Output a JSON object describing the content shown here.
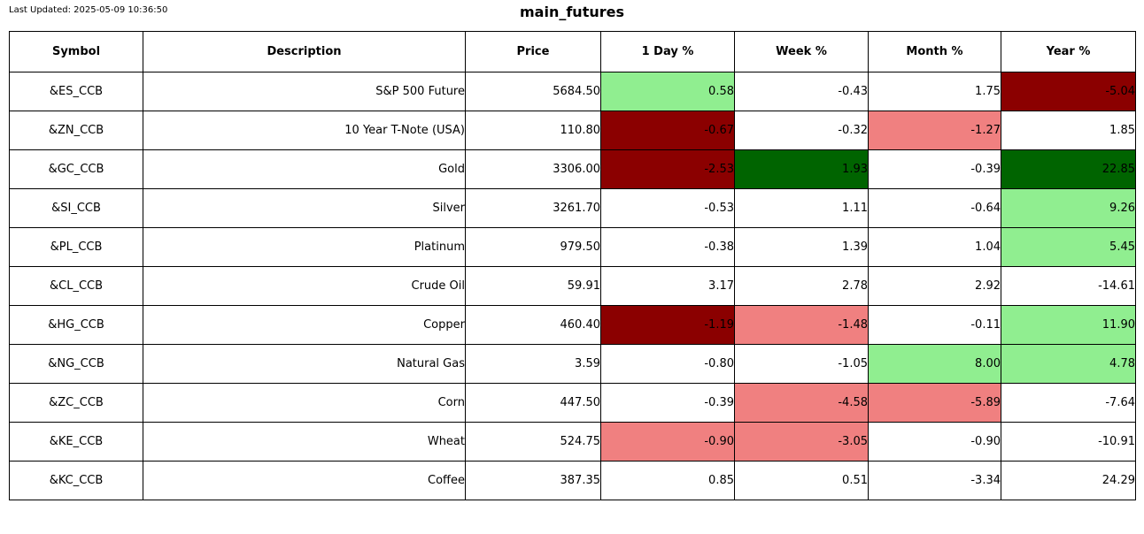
{
  "header": {
    "last_updated": "Last Updated: 2025-05-09 10:36:50",
    "title": "main_futures"
  },
  "chart_data": {
    "type": "table",
    "title": "main_futures",
    "columns": [
      "Symbol",
      "Description",
      "Price",
      "1 Day %",
      "Week %",
      "Month %",
      "Year %"
    ],
    "color_map": {
      "neutral": "#FFFFFF",
      "up": "#90EE90",
      "up_strong": "#006400",
      "down": "#F08080",
      "down_strong": "#8B0000"
    },
    "rows": [
      {
        "symbol": "&ES_CCB",
        "description": "S&P 500 Future",
        "price": "5684.50",
        "pct": [
          {
            "value": "0.58",
            "color": "up"
          },
          {
            "value": "-0.43",
            "color": "neutral"
          },
          {
            "value": "1.75",
            "color": "neutral"
          },
          {
            "value": "-5.04",
            "color": "down_strong"
          }
        ]
      },
      {
        "symbol": "&ZN_CCB",
        "description": "10 Year T-Note (USA)",
        "price": "110.80",
        "pct": [
          {
            "value": "-0.67",
            "color": "down_strong"
          },
          {
            "value": "-0.32",
            "color": "neutral"
          },
          {
            "value": "-1.27",
            "color": "down"
          },
          {
            "value": "1.85",
            "color": "neutral"
          }
        ]
      },
      {
        "symbol": "&GC_CCB",
        "description": "Gold",
        "price": "3306.00",
        "pct": [
          {
            "value": "-2.53",
            "color": "down_strong"
          },
          {
            "value": "1.93",
            "color": "up_strong"
          },
          {
            "value": "-0.39",
            "color": "neutral"
          },
          {
            "value": "22.85",
            "color": "up_strong"
          }
        ]
      },
      {
        "symbol": "&SI_CCB",
        "description": "Silver",
        "price": "3261.70",
        "pct": [
          {
            "value": "-0.53",
            "color": "neutral"
          },
          {
            "value": "1.11",
            "color": "neutral"
          },
          {
            "value": "-0.64",
            "color": "neutral"
          },
          {
            "value": "9.26",
            "color": "up"
          }
        ]
      },
      {
        "symbol": "&PL_CCB",
        "description": "Platinum",
        "price": "979.50",
        "pct": [
          {
            "value": "-0.38",
            "color": "neutral"
          },
          {
            "value": "1.39",
            "color": "neutral"
          },
          {
            "value": "1.04",
            "color": "neutral"
          },
          {
            "value": "5.45",
            "color": "up"
          }
        ]
      },
      {
        "symbol": "&CL_CCB",
        "description": "Crude Oil",
        "price": "59.91",
        "pct": [
          {
            "value": "3.17",
            "color": "neutral"
          },
          {
            "value": "2.78",
            "color": "neutral"
          },
          {
            "value": "2.92",
            "color": "neutral"
          },
          {
            "value": "-14.61",
            "color": "neutral"
          }
        ]
      },
      {
        "symbol": "&HG_CCB",
        "description": "Copper",
        "price": "460.40",
        "pct": [
          {
            "value": "-1.19",
            "color": "down_strong"
          },
          {
            "value": "-1.48",
            "color": "down"
          },
          {
            "value": "-0.11",
            "color": "neutral"
          },
          {
            "value": "11.90",
            "color": "up"
          }
        ]
      },
      {
        "symbol": "&NG_CCB",
        "description": "Natural Gas",
        "price": "3.59",
        "pct": [
          {
            "value": "-0.80",
            "color": "neutral"
          },
          {
            "value": "-1.05",
            "color": "neutral"
          },
          {
            "value": "8.00",
            "color": "up"
          },
          {
            "value": "4.78",
            "color": "up"
          }
        ]
      },
      {
        "symbol": "&ZC_CCB",
        "description": "Corn",
        "price": "447.50",
        "pct": [
          {
            "value": "-0.39",
            "color": "neutral"
          },
          {
            "value": "-4.58",
            "color": "down"
          },
          {
            "value": "-5.89",
            "color": "down"
          },
          {
            "value": "-7.64",
            "color": "neutral"
          }
        ]
      },
      {
        "symbol": "&KE_CCB",
        "description": "Wheat",
        "price": "524.75",
        "pct": [
          {
            "value": "-0.90",
            "color": "down"
          },
          {
            "value": "-3.05",
            "color": "down"
          },
          {
            "value": "-0.90",
            "color": "neutral"
          },
          {
            "value": "-10.91",
            "color": "neutral"
          }
        ]
      },
      {
        "symbol": "&KC_CCB",
        "description": "Coffee",
        "price": "387.35",
        "pct": [
          {
            "value": "0.85",
            "color": "neutral"
          },
          {
            "value": "0.51",
            "color": "neutral"
          },
          {
            "value": "-3.34",
            "color": "neutral"
          },
          {
            "value": "24.29",
            "color": "neutral"
          }
        ]
      }
    ]
  }
}
